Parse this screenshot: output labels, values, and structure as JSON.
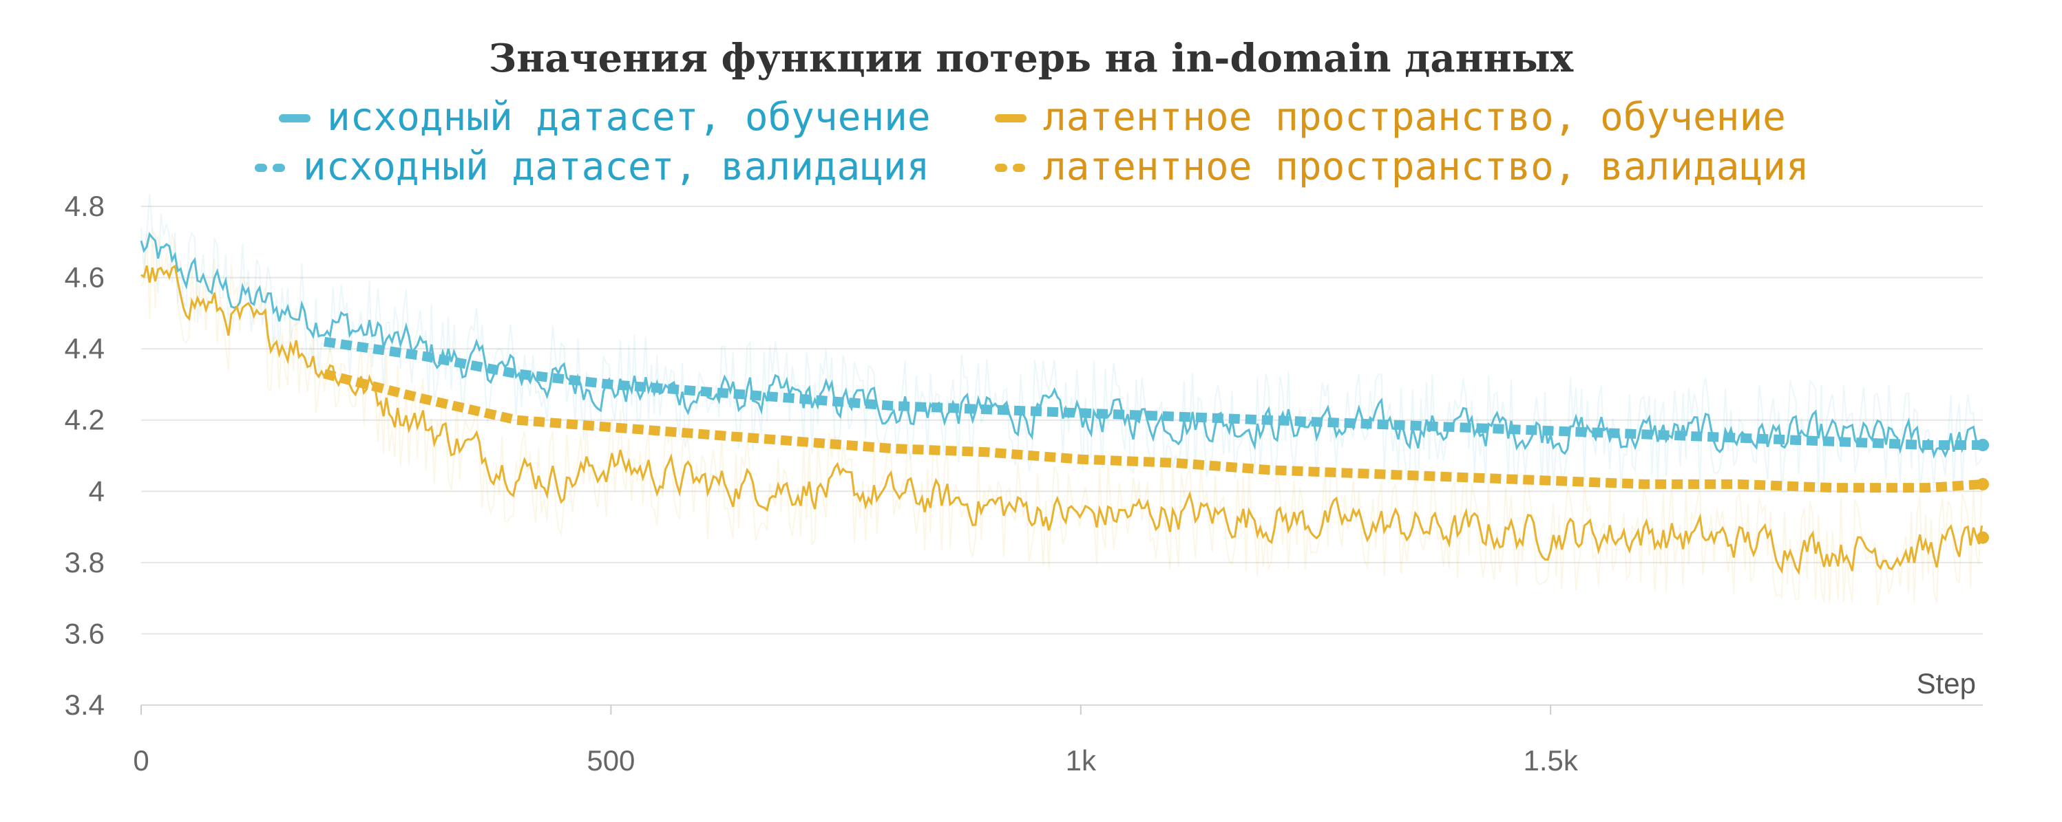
{
  "chart_data": {
    "type": "line",
    "title": "Значения функции потерь на in-domain данных",
    "xlabel": "Step",
    "ylabel": "",
    "xlim": [
      0,
      1960
    ],
    "ylim": [
      3.4,
      4.8
    ],
    "x_ticks": [
      0,
      500,
      1000,
      1500
    ],
    "x_tick_labels": [
      "0",
      "500",
      "1k",
      "1.5k"
    ],
    "y_ticks": [
      3.4,
      3.6,
      3.8,
      4.0,
      4.2,
      4.4,
      4.6,
      4.8
    ],
    "y_tick_labels": [
      "3.4",
      "3.6",
      "3.8",
      "4",
      "4.2",
      "4.4",
      "4.6",
      "4.8"
    ],
    "grid": true,
    "legend_position": "top",
    "series": [
      {
        "name": "исходный датасет, обучение",
        "color": "#5bbcd6",
        "style": "solid",
        "x": [
          0,
          50,
          100,
          150,
          200,
          250,
          300,
          350,
          400,
          450,
          500,
          600,
          700,
          800,
          900,
          1000,
          1100,
          1200,
          1300,
          1400,
          1500,
          1600,
          1700,
          1800,
          1900,
          1960
        ],
        "y": [
          4.69,
          4.61,
          4.55,
          4.51,
          4.48,
          4.44,
          4.39,
          4.36,
          4.33,
          4.31,
          4.29,
          4.27,
          4.26,
          4.24,
          4.22,
          4.21,
          4.2,
          4.19,
          4.18,
          4.18,
          4.17,
          4.16,
          4.16,
          4.15,
          4.14,
          4.13
        ]
      },
      {
        "name": "латентное пространство, обучение",
        "color": "#e8b22f",
        "style": "solid",
        "x": [
          0,
          50,
          100,
          150,
          200,
          250,
          300,
          350,
          400,
          450,
          500,
          600,
          700,
          800,
          900,
          1000,
          1100,
          1200,
          1300,
          1400,
          1500,
          1600,
          1700,
          1800,
          1900,
          1960
        ],
        "y": [
          4.62,
          4.55,
          4.48,
          4.43,
          4.35,
          4.27,
          4.19,
          4.12,
          4.06,
          4.03,
          4.08,
          4.02,
          4.01,
          3.99,
          3.96,
          3.93,
          3.94,
          3.92,
          3.91,
          3.89,
          3.88,
          3.88,
          3.86,
          3.84,
          3.83,
          3.87
        ]
      },
      {
        "name": "исходный датасет, валидация",
        "color": "#5bbcd6",
        "style": "dashed",
        "x": [
          195,
          300,
          400,
          500,
          600,
          700,
          800,
          900,
          1000,
          1100,
          1200,
          1300,
          1400,
          1500,
          1600,
          1700,
          1800,
          1900,
          1960
        ],
        "y": [
          4.42,
          4.38,
          4.33,
          4.3,
          4.28,
          4.26,
          4.24,
          4.23,
          4.22,
          4.21,
          4.2,
          4.19,
          4.18,
          4.17,
          4.16,
          4.15,
          4.14,
          4.13,
          4.13
        ]
      },
      {
        "name": "латентное пространство, валидация",
        "color": "#e8b22f",
        "style": "dashed",
        "x": [
          195,
          300,
          400,
          500,
          600,
          700,
          800,
          900,
          1000,
          1100,
          1200,
          1300,
          1400,
          1500,
          1600,
          1700,
          1800,
          1900,
          1960
        ],
        "y": [
          4.33,
          4.26,
          4.2,
          4.18,
          4.16,
          4.14,
          4.12,
          4.11,
          4.09,
          4.08,
          4.06,
          4.05,
          4.04,
          4.03,
          4.02,
          4.02,
          4.01,
          4.01,
          4.02
        ]
      }
    ]
  }
}
